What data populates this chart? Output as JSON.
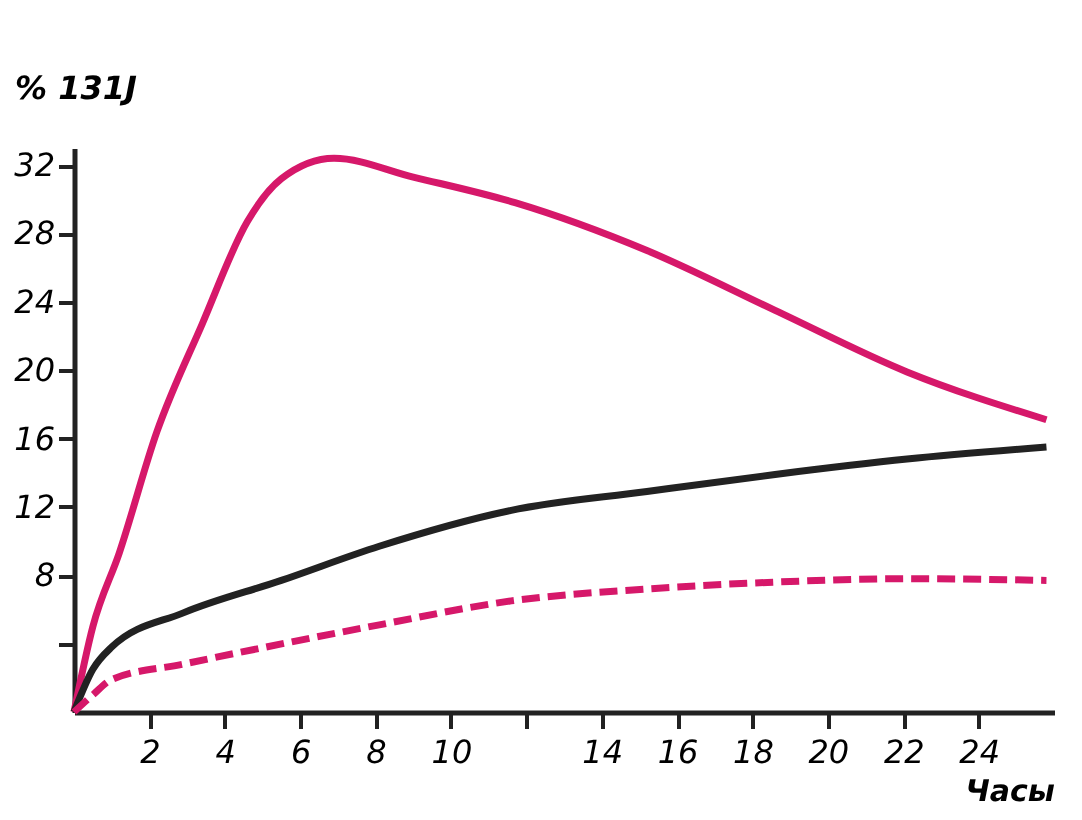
{
  "chart_data": {
    "type": "line",
    "xlabel": "Часы",
    "ylabel": "% 131J",
    "xlim": [
      0,
      26
    ],
    "ylim": [
      0,
      33
    ],
    "xticks": [
      2,
      4,
      6,
      8,
      10,
      {
        "value": 12,
        "label": null
      },
      14,
      16,
      18,
      20,
      22,
      24
    ],
    "yticks": [
      {
        "value": 4,
        "label": null
      },
      8,
      12,
      16,
      20,
      24,
      28,
      32
    ],
    "grid": false,
    "marker": "none",
    "series": [
      {
        "color": "#d6186a",
        "line_style": "solid",
        "x": [
          0,
          0.5,
          1.2,
          2.2,
          3.4,
          4.6,
          5.5,
          6.9,
          9,
          11.7,
          15.2,
          18.6,
          22.1,
          25.8
        ],
        "values": [
          0,
          5,
          9.3,
          16.4,
          22.7,
          28.7,
          31.2,
          32.4,
          31.3,
          29.8,
          27.0,
          23.5,
          19.9,
          17.1
        ]
      },
      {
        "color": "#222222",
        "line_style": "solid",
        "x": [
          0,
          0.5,
          1,
          2.9,
          5.5,
          8.1,
          11.6,
          15.2,
          18.6,
          22.1,
          25.8
        ],
        "values": [
          0,
          2.5,
          3.8,
          5.8,
          7.7,
          9.7,
          11.8,
          12.9,
          13.9,
          14.8,
          15.5
        ]
      },
      {
        "color": "#d6186a",
        "line_style": "dashed",
        "x": [
          0,
          0.5,
          1,
          2.9,
          8.1,
          11.6,
          15.2,
          18.6,
          22.1,
          25.8
        ],
        "values": [
          0,
          1.0,
          1.9,
          2.8,
          5.1,
          6.5,
          7.2,
          7.6,
          7.8,
          7.7
        ]
      }
    ]
  }
}
